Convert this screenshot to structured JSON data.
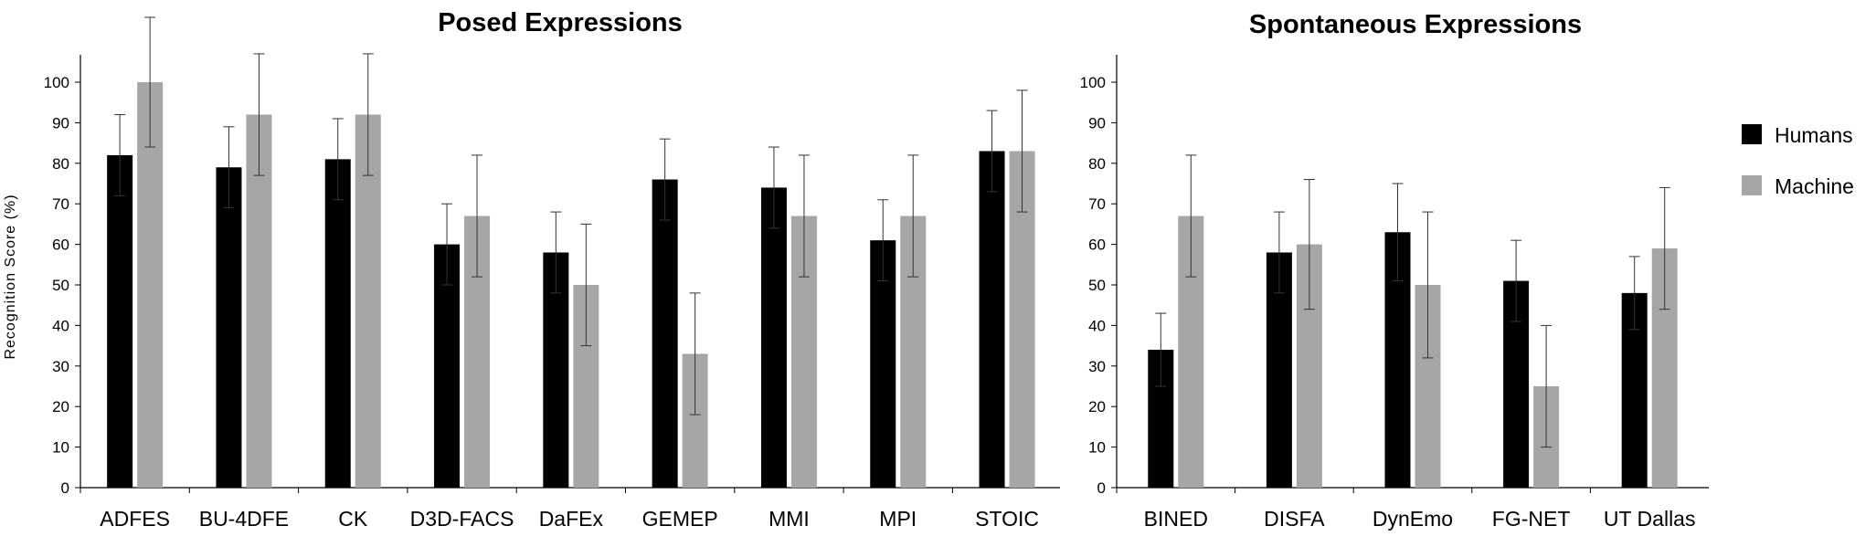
{
  "chart_data": [
    {
      "type": "bar",
      "title": "Posed Expressions",
      "xlabel": "",
      "ylabel": "Recognition Score (%)",
      "ylim": [
        0,
        100
      ],
      "yticks": [
        0,
        10,
        20,
        30,
        40,
        50,
        60,
        70,
        80,
        90,
        100
      ],
      "categories": [
        "ADFES",
        "BU-4DFE",
        "CK",
        "D3D-FACS",
        "DaFEx",
        "GEMEP",
        "MMI",
        "MPI",
        "STOIC"
      ],
      "series": [
        {
          "name": "Humans",
          "color": "#000000",
          "values": [
            82,
            79,
            81,
            60,
            58,
            76,
            74,
            61,
            83
          ],
          "error": [
            10,
            10,
            10,
            10,
            10,
            10,
            10,
            10,
            10
          ]
        },
        {
          "name": "Machine",
          "color": "#a6a6a6",
          "values": [
            100,
            92,
            92,
            67,
            50,
            33,
            67,
            67,
            83
          ],
          "error": [
            16,
            15,
            15,
            15,
            15,
            15,
            15,
            15,
            15
          ]
        }
      ]
    },
    {
      "type": "bar",
      "title": "Spontaneous Expressions",
      "xlabel": "",
      "ylabel": "",
      "ylim": [
        0,
        100
      ],
      "yticks": [
        0,
        10,
        20,
        30,
        40,
        50,
        60,
        70,
        80,
        90,
        100
      ],
      "categories": [
        "BINED",
        "DISFA",
        "DynEmo",
        "FG-NET",
        "UT Dallas"
      ],
      "series": [
        {
          "name": "Humans",
          "color": "#000000",
          "values": [
            34,
            58,
            63,
            51,
            48
          ],
          "error": [
            9,
            10,
            12,
            10,
            9
          ]
        },
        {
          "name": "Machine",
          "color": "#a6a6a6",
          "values": [
            67,
            60,
            50,
            25,
            59
          ],
          "error": [
            15,
            16,
            18,
            15,
            15
          ]
        }
      ]
    }
  ],
  "legend": {
    "position": "right",
    "items": [
      {
        "label": "Humans",
        "color": "#000000"
      },
      {
        "label": "Machine",
        "color": "#a6a6a6"
      }
    ]
  }
}
